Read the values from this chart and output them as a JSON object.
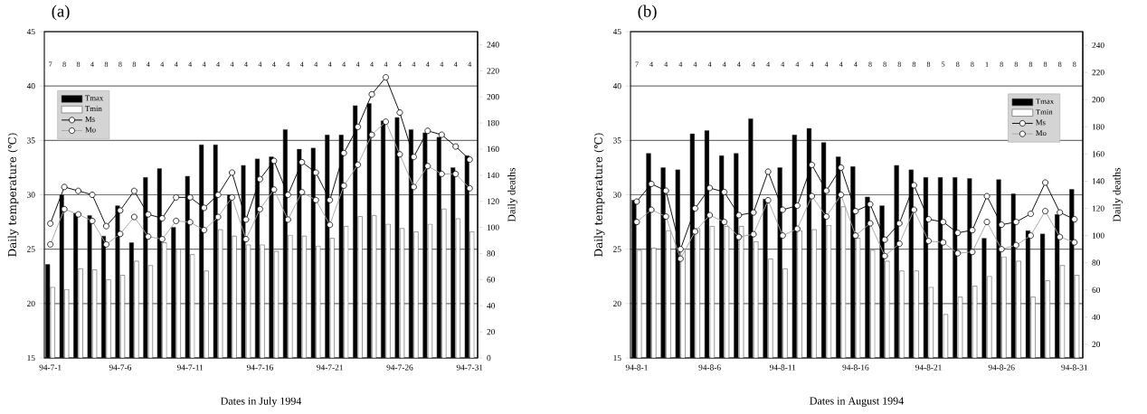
{
  "chart_data": [
    {
      "type": "bar",
      "title": "(a)",
      "xlabel": "Dates in July 1994",
      "ylabel": "Daily temperature (℃)",
      "y2label": "Daily deaths",
      "categories": [
        "94-7-1",
        null,
        null,
        null,
        null,
        "94-7-6",
        null,
        null,
        null,
        null,
        "94-7-11",
        null,
        null,
        null,
        null,
        "94-7-16",
        null,
        null,
        null,
        null,
        "94-7-21",
        null,
        null,
        null,
        null,
        "94-7-26",
        null,
        null,
        null,
        null,
        "94-7-31"
      ],
      "ylim": [
        15,
        45
      ],
      "yticks": [
        15,
        20,
        25,
        30,
        35,
        40,
        45
      ],
      "y2lim": [
        0,
        250
      ],
      "y2ticks": [
        0,
        20,
        40,
        60,
        80,
        100,
        120,
        140,
        160,
        180,
        200,
        220,
        240
      ],
      "grid": "y",
      "legend": "top left",
      "marker": "circle",
      "series": [
        {
          "name": "Tmax",
          "color": "#000000",
          "values": [
            23.6,
            30.0,
            28.3,
            28.1,
            26.2,
            29.0,
            25.6,
            31.6,
            32.4,
            27.0,
            31.7,
            34.6,
            34.6,
            30.0,
            32.7,
            33.3,
            33.5,
            36.0,
            34.2,
            34.3,
            35.5,
            35.5,
            38.2,
            38.4,
            36.8,
            37.1,
            36.0,
            35.7,
            35.3,
            32.5,
            33.6
          ]
        },
        {
          "name": "Tmin",
          "color": "#ffffff",
          "values": [
            21.5,
            21.3,
            23.2,
            23.1,
            22.2,
            22.6,
            23.9,
            23.5,
            25.6,
            25.0,
            24.5,
            23.0,
            26.8,
            26.2,
            25.4,
            25.4,
            24.8,
            26.3,
            26.2,
            25.3,
            26.0,
            27.1,
            28.0,
            28.1,
            27.3,
            26.9,
            26.6,
            27.3,
            28.7,
            27.8,
            26.6
          ]
        },
        {
          "name": "Ms",
          "type": "line",
          "axis": "y2",
          "color": "#000000",
          "values": [
            103,
            131,
            128,
            125,
            101,
            113,
            128,
            110,
            107,
            123,
            123,
            115,
            125,
            142,
            106,
            137,
            151,
            125,
            150,
            142,
            121,
            157,
            177,
            202,
            215,
            188,
            154,
            174,
            171,
            162,
            152
          ]
        },
        {
          "name": "Mo",
          "type": "line",
          "axis": "y2",
          "color": "#a6a6a6",
          "values": [
            87,
            114,
            110,
            105,
            87,
            95,
            108,
            93,
            91,
            105,
            104,
            98,
            108,
            123,
            91,
            114,
            129,
            106,
            127,
            121,
            102,
            132,
            148,
            171,
            181,
            156,
            131,
            147,
            141,
            141,
            130
          ]
        }
      ],
      "annotations": [
        "7",
        "8",
        "8",
        "4",
        "8",
        "8",
        "8",
        "4",
        "4",
        "4",
        "4",
        "4",
        "4",
        "4",
        "4",
        "4",
        "4",
        "4",
        "4",
        "4",
        "4",
        "4",
        "4",
        "4",
        "4",
        "4",
        "4",
        "4",
        "4",
        "4",
        "4"
      ]
    },
    {
      "type": "bar",
      "title": "(b)",
      "xlabel": "Dates in August 1994",
      "ylabel": "Daily temperature (℃)",
      "y2label": "Daily deaths",
      "categories": [
        "94-8-1",
        null,
        null,
        null,
        null,
        "94-8-6",
        null,
        null,
        null,
        null,
        "94-8-11",
        null,
        null,
        null,
        null,
        "94-8-16",
        null,
        null,
        null,
        null,
        "94-8-21",
        null,
        null,
        null,
        null,
        "94-8-26",
        null,
        null,
        null,
        null,
        "94-8-31"
      ],
      "ylim": [
        15,
        45
      ],
      "yticks": [
        15,
        20,
        25,
        30,
        35,
        40,
        45
      ],
      "y2lim": [
        10,
        250
      ],
      "y2ticks": [
        20,
        40,
        60,
        80,
        100,
        120,
        140,
        160,
        180,
        200,
        220,
        240
      ],
      "grid": "y",
      "legend": "top right",
      "marker": "circle",
      "series": [
        {
          "name": "Tmax",
          "color": "#000000",
          "values": [
            29.5,
            33.8,
            32.5,
            32.3,
            35.6,
            35.9,
            33.6,
            33.8,
            37.0,
            29.6,
            32.5,
            35.5,
            36.1,
            34.8,
            33.5,
            32.6,
            29.8,
            29.0,
            32.7,
            32.3,
            31.6,
            31.6,
            31.6,
            31.5,
            26.0,
            31.4,
            30.1,
            26.7,
            26.4,
            28.2,
            30.5
          ]
        },
        {
          "name": "Tmin",
          "color": "#ffffff",
          "values": [
            24.9,
            25.1,
            26.7,
            25.0,
            26.9,
            27.1,
            27.1,
            27.1,
            25.7,
            24.1,
            23.2,
            26.7,
            26.8,
            27.2,
            28.9,
            26.0,
            24.9,
            23.9,
            23.0,
            23.0,
            21.5,
            19.0,
            20.6,
            21.6,
            22.5,
            24.3,
            23.9,
            20.6,
            22.1,
            23.5,
            22.6
          ]
        },
        {
          "name": "Ms",
          "type": "line",
          "axis": "y2",
          "color": "#000000",
          "values": [
            125,
            138,
            133,
            90,
            120,
            135,
            132,
            115,
            117,
            147,
            119,
            122,
            152,
            133,
            150,
            118,
            123,
            97,
            109,
            137,
            112,
            110,
            102,
            104,
            129,
            108,
            110,
            116,
            139,
            117,
            112
          ]
        },
        {
          "name": "Mo",
          "type": "line",
          "axis": "y2",
          "color": "#a6a6a6",
          "values": [
            110,
            119,
            114,
            83,
            103,
            115,
            110,
            99,
            101,
            126,
            100,
            105,
            129,
            114,
            130,
            100,
            109,
            85,
            94,
            119,
            96,
            95,
            87,
            88,
            110,
            90,
            93,
            100,
            118,
            99,
            95
          ]
        }
      ],
      "annotations": [
        "7",
        "4",
        "4",
        "4",
        "4",
        "4",
        "4",
        "4",
        "4",
        "4",
        "4",
        "4",
        "4",
        "4",
        "4",
        "4",
        "8",
        "8",
        "8",
        "8",
        "8",
        "5",
        "8",
        "8",
        "1",
        "8",
        "8",
        "8",
        "8",
        "8",
        "8"
      ]
    }
  ]
}
